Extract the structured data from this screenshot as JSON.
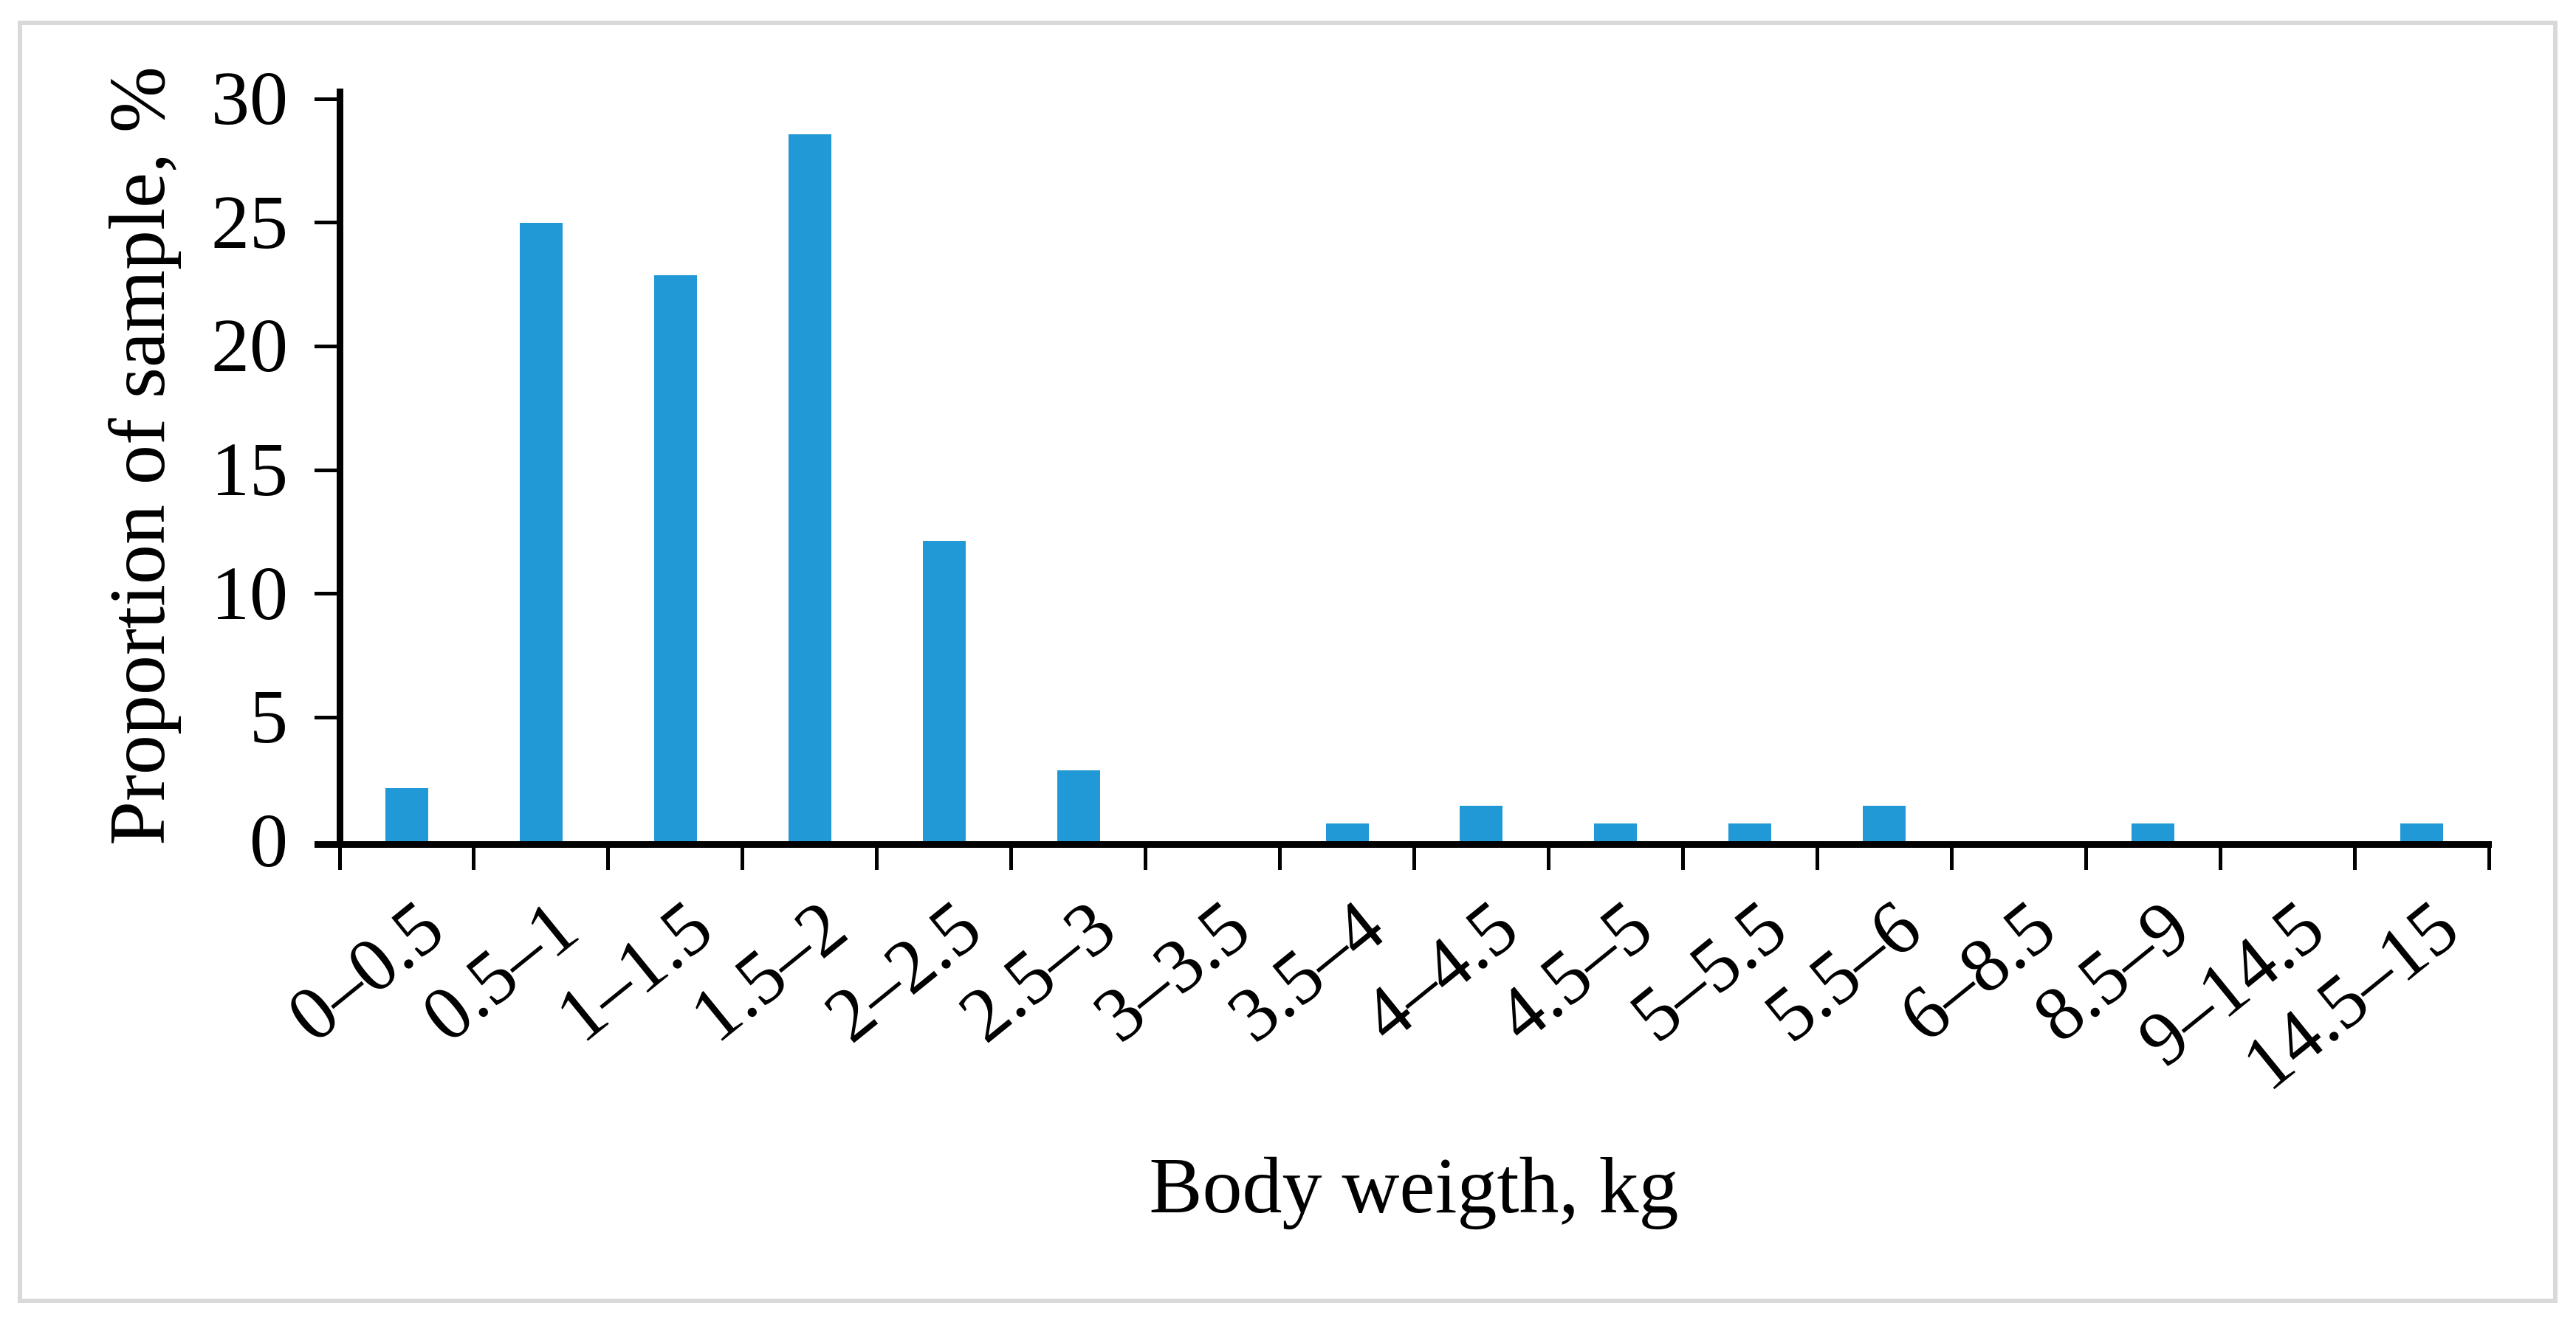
{
  "frame_border_color": "#d9d9d9",
  "chart_data": {
    "type": "bar",
    "title": "",
    "categories": [
      "0–0.5",
      "0.5–1",
      "1–1.5",
      "1.5–2",
      "2–2.5",
      "2.5–3",
      "3–3.5",
      "3.5–4",
      "4–4.5",
      "4.5–5",
      "5–5.5",
      "5.5–6",
      "6–8.5",
      "8.5–9",
      "9–14.5",
      "14.5–15"
    ],
    "values": [
      2.14,
      25.0,
      22.86,
      28.57,
      12.14,
      2.86,
      0,
      0.71,
      1.43,
      0.71,
      0.71,
      1.43,
      0,
      0.71,
      0,
      0.71
    ],
    "xlabel": "Body weigth, kg",
    "ylabel": "Proportion of sample, %",
    "ylim": [
      0,
      30
    ],
    "yticks": [
      0,
      5,
      10,
      15,
      20,
      25,
      30
    ],
    "bar_color": "#2199D6",
    "axis_color": "#000000",
    "grid": false,
    "legend": false,
    "x_label_rotation_deg": 39
  }
}
